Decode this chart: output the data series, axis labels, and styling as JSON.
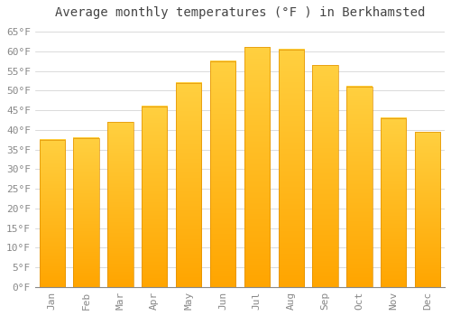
{
  "months": [
    "Jan",
    "Feb",
    "Mar",
    "Apr",
    "May",
    "Jun",
    "Jul",
    "Aug",
    "Sep",
    "Oct",
    "Nov",
    "Dec"
  ],
  "values": [
    37.5,
    38,
    42,
    46,
    52,
    57.5,
    61,
    60.5,
    56.5,
    51,
    43,
    39.5
  ],
  "bar_color_top": "#FFD040",
  "bar_color_bottom": "#FFA500",
  "bar_edge_color": "#E09000",
  "background_color": "#FFFFFF",
  "grid_color": "#CCCCCC",
  "title": "Average monthly temperatures (°F ) in Berkhamsted",
  "title_fontsize": 10,
  "title_color": "#444444",
  "yticks": [
    0,
    5,
    10,
    15,
    20,
    25,
    30,
    35,
    40,
    45,
    50,
    55,
    60,
    65
  ],
  "ylim": [
    0,
    67
  ],
  "tick_fontsize": 8,
  "tick_font_color": "#888888"
}
